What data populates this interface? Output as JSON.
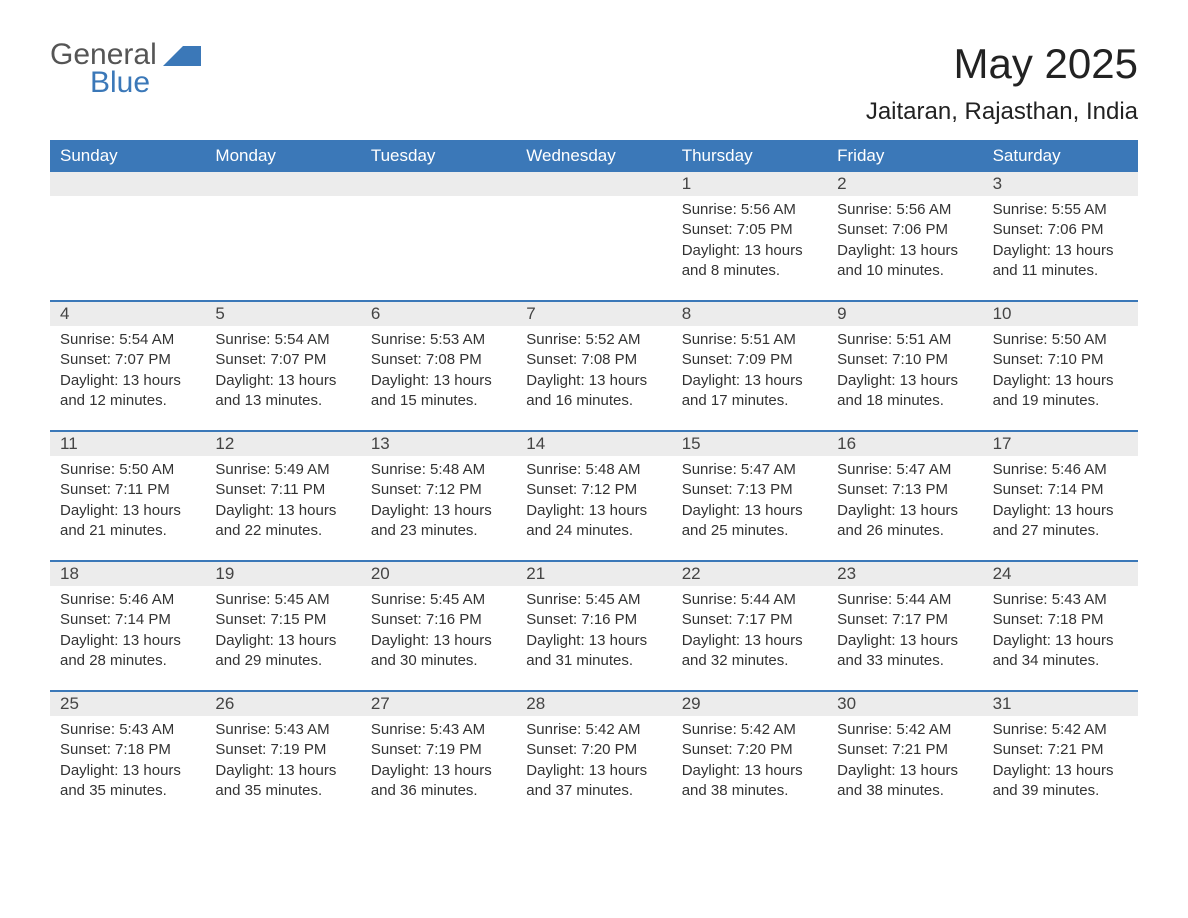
{
  "logo": {
    "general": "General",
    "blue": "Blue"
  },
  "title": "May 2025",
  "location": "Jaitaran, Rajasthan, India",
  "colors": {
    "header_bg": "#3b78b8",
    "header_text": "#ffffff",
    "daynum_bg": "#ececec",
    "border": "#3b78b8",
    "body_text": "#333333",
    "page_bg": "#ffffff"
  },
  "dow": [
    "Sunday",
    "Monday",
    "Tuesday",
    "Wednesday",
    "Thursday",
    "Friday",
    "Saturday"
  ],
  "weeks": [
    [
      null,
      null,
      null,
      null,
      {
        "n": "1",
        "sr": "Sunrise: 5:56 AM",
        "ss": "Sunset: 7:05 PM",
        "d1": "Daylight: 13 hours",
        "d2": "and 8 minutes."
      },
      {
        "n": "2",
        "sr": "Sunrise: 5:56 AM",
        "ss": "Sunset: 7:06 PM",
        "d1": "Daylight: 13 hours",
        "d2": "and 10 minutes."
      },
      {
        "n": "3",
        "sr": "Sunrise: 5:55 AM",
        "ss": "Sunset: 7:06 PM",
        "d1": "Daylight: 13 hours",
        "d2": "and 11 minutes."
      }
    ],
    [
      {
        "n": "4",
        "sr": "Sunrise: 5:54 AM",
        "ss": "Sunset: 7:07 PM",
        "d1": "Daylight: 13 hours",
        "d2": "and 12 minutes."
      },
      {
        "n": "5",
        "sr": "Sunrise: 5:54 AM",
        "ss": "Sunset: 7:07 PM",
        "d1": "Daylight: 13 hours",
        "d2": "and 13 minutes."
      },
      {
        "n": "6",
        "sr": "Sunrise: 5:53 AM",
        "ss": "Sunset: 7:08 PM",
        "d1": "Daylight: 13 hours",
        "d2": "and 15 minutes."
      },
      {
        "n": "7",
        "sr": "Sunrise: 5:52 AM",
        "ss": "Sunset: 7:08 PM",
        "d1": "Daylight: 13 hours",
        "d2": "and 16 minutes."
      },
      {
        "n": "8",
        "sr": "Sunrise: 5:51 AM",
        "ss": "Sunset: 7:09 PM",
        "d1": "Daylight: 13 hours",
        "d2": "and 17 minutes."
      },
      {
        "n": "9",
        "sr": "Sunrise: 5:51 AM",
        "ss": "Sunset: 7:10 PM",
        "d1": "Daylight: 13 hours",
        "d2": "and 18 minutes."
      },
      {
        "n": "10",
        "sr": "Sunrise: 5:50 AM",
        "ss": "Sunset: 7:10 PM",
        "d1": "Daylight: 13 hours",
        "d2": "and 19 minutes."
      }
    ],
    [
      {
        "n": "11",
        "sr": "Sunrise: 5:50 AM",
        "ss": "Sunset: 7:11 PM",
        "d1": "Daylight: 13 hours",
        "d2": "and 21 minutes."
      },
      {
        "n": "12",
        "sr": "Sunrise: 5:49 AM",
        "ss": "Sunset: 7:11 PM",
        "d1": "Daylight: 13 hours",
        "d2": "and 22 minutes."
      },
      {
        "n": "13",
        "sr": "Sunrise: 5:48 AM",
        "ss": "Sunset: 7:12 PM",
        "d1": "Daylight: 13 hours",
        "d2": "and 23 minutes."
      },
      {
        "n": "14",
        "sr": "Sunrise: 5:48 AM",
        "ss": "Sunset: 7:12 PM",
        "d1": "Daylight: 13 hours",
        "d2": "and 24 minutes."
      },
      {
        "n": "15",
        "sr": "Sunrise: 5:47 AM",
        "ss": "Sunset: 7:13 PM",
        "d1": "Daylight: 13 hours",
        "d2": "and 25 minutes."
      },
      {
        "n": "16",
        "sr": "Sunrise: 5:47 AM",
        "ss": "Sunset: 7:13 PM",
        "d1": "Daylight: 13 hours",
        "d2": "and 26 minutes."
      },
      {
        "n": "17",
        "sr": "Sunrise: 5:46 AM",
        "ss": "Sunset: 7:14 PM",
        "d1": "Daylight: 13 hours",
        "d2": "and 27 minutes."
      }
    ],
    [
      {
        "n": "18",
        "sr": "Sunrise: 5:46 AM",
        "ss": "Sunset: 7:14 PM",
        "d1": "Daylight: 13 hours",
        "d2": "and 28 minutes."
      },
      {
        "n": "19",
        "sr": "Sunrise: 5:45 AM",
        "ss": "Sunset: 7:15 PM",
        "d1": "Daylight: 13 hours",
        "d2": "and 29 minutes."
      },
      {
        "n": "20",
        "sr": "Sunrise: 5:45 AM",
        "ss": "Sunset: 7:16 PM",
        "d1": "Daylight: 13 hours",
        "d2": "and 30 minutes."
      },
      {
        "n": "21",
        "sr": "Sunrise: 5:45 AM",
        "ss": "Sunset: 7:16 PM",
        "d1": "Daylight: 13 hours",
        "d2": "and 31 minutes."
      },
      {
        "n": "22",
        "sr": "Sunrise: 5:44 AM",
        "ss": "Sunset: 7:17 PM",
        "d1": "Daylight: 13 hours",
        "d2": "and 32 minutes."
      },
      {
        "n": "23",
        "sr": "Sunrise: 5:44 AM",
        "ss": "Sunset: 7:17 PM",
        "d1": "Daylight: 13 hours",
        "d2": "and 33 minutes."
      },
      {
        "n": "24",
        "sr": "Sunrise: 5:43 AM",
        "ss": "Sunset: 7:18 PM",
        "d1": "Daylight: 13 hours",
        "d2": "and 34 minutes."
      }
    ],
    [
      {
        "n": "25",
        "sr": "Sunrise: 5:43 AM",
        "ss": "Sunset: 7:18 PM",
        "d1": "Daylight: 13 hours",
        "d2": "and 35 minutes."
      },
      {
        "n": "26",
        "sr": "Sunrise: 5:43 AM",
        "ss": "Sunset: 7:19 PM",
        "d1": "Daylight: 13 hours",
        "d2": "and 35 minutes."
      },
      {
        "n": "27",
        "sr": "Sunrise: 5:43 AM",
        "ss": "Sunset: 7:19 PM",
        "d1": "Daylight: 13 hours",
        "d2": "and 36 minutes."
      },
      {
        "n": "28",
        "sr": "Sunrise: 5:42 AM",
        "ss": "Sunset: 7:20 PM",
        "d1": "Daylight: 13 hours",
        "d2": "and 37 minutes."
      },
      {
        "n": "29",
        "sr": "Sunrise: 5:42 AM",
        "ss": "Sunset: 7:20 PM",
        "d1": "Daylight: 13 hours",
        "d2": "and 38 minutes."
      },
      {
        "n": "30",
        "sr": "Sunrise: 5:42 AM",
        "ss": "Sunset: 7:21 PM",
        "d1": "Daylight: 13 hours",
        "d2": "and 38 minutes."
      },
      {
        "n": "31",
        "sr": "Sunrise: 5:42 AM",
        "ss": "Sunset: 7:21 PM",
        "d1": "Daylight: 13 hours",
        "d2": "and 39 minutes."
      }
    ]
  ]
}
